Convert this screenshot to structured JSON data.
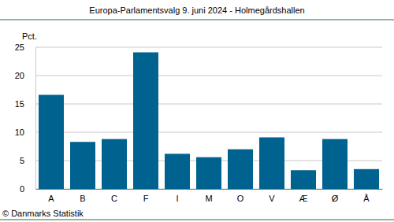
{
  "chart_data": {
    "type": "bar",
    "title": "Europa-Parlamentsvalg 9. juni 2024 - Holmegårdshallen",
    "y_label": "Pct.",
    "source": "© Danmarks Statistik",
    "categories": [
      "A",
      "B",
      "C",
      "F",
      "I",
      "M",
      "O",
      "V",
      "Æ",
      "Ø",
      "Å"
    ],
    "values": [
      16.6,
      8.3,
      8.8,
      24.1,
      6.2,
      5.6,
      7.0,
      9.1,
      3.3,
      8.8,
      3.5
    ],
    "color": "#00628f",
    "ylim": [
      0,
      25
    ],
    "yticks": [
      0,
      5,
      10,
      15,
      20,
      25
    ],
    "grid": true
  }
}
